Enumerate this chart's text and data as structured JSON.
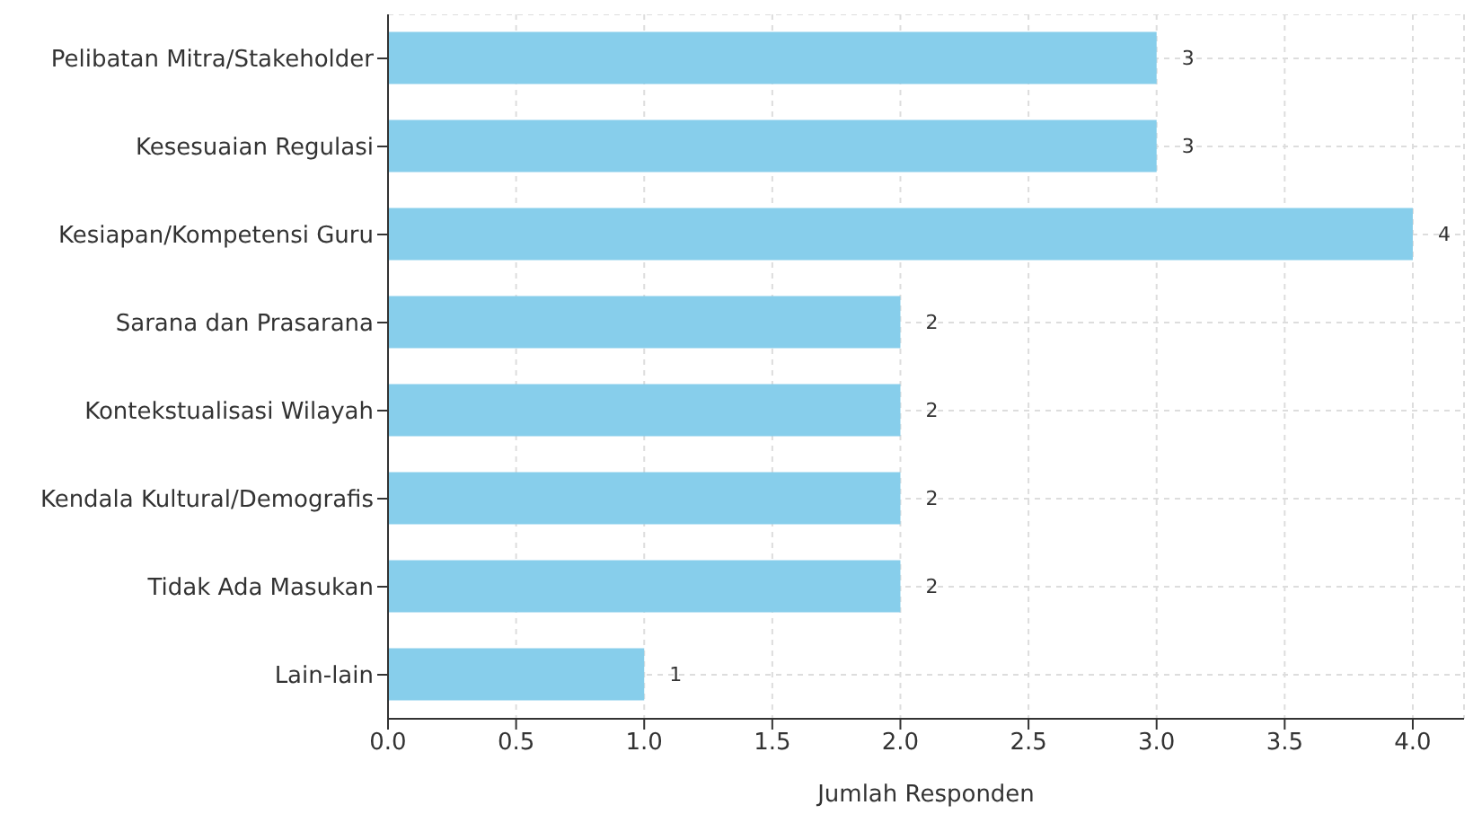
{
  "chart_data": {
    "type": "bar",
    "orientation": "horizontal",
    "categories": [
      "Pelibatan Mitra/Stakeholder",
      "Kesesuaian Regulasi",
      "Kesiapan/Kompetensi Guru",
      "Sarana dan Prasarana",
      "Kontekstualisasi Wilayah",
      "Kendala Kultural/Demografis",
      "Tidak Ada Masukan",
      "Lain-lain"
    ],
    "values": [
      3,
      3,
      4,
      2,
      2,
      2,
      2,
      1
    ],
    "color": "#87ceeb",
    "xlabel": "Jumlah Responden",
    "xlim": [
      0,
      4.2
    ],
    "xticks": [
      {
        "value": 0,
        "label": "0.0"
      },
      {
        "value": 0.5,
        "label": "0.5"
      },
      {
        "value": 1,
        "label": "1.0"
      },
      {
        "value": 1.5,
        "label": "1.5"
      },
      {
        "value": 2,
        "label": "2.0"
      },
      {
        "value": 2.5,
        "label": "2.5"
      },
      {
        "value": 3,
        "label": "3.0"
      },
      {
        "value": 3.5,
        "label": "3.5"
      },
      {
        "value": 4,
        "label": "4.0"
      }
    ],
    "grid": true,
    "data_labels": true
  }
}
